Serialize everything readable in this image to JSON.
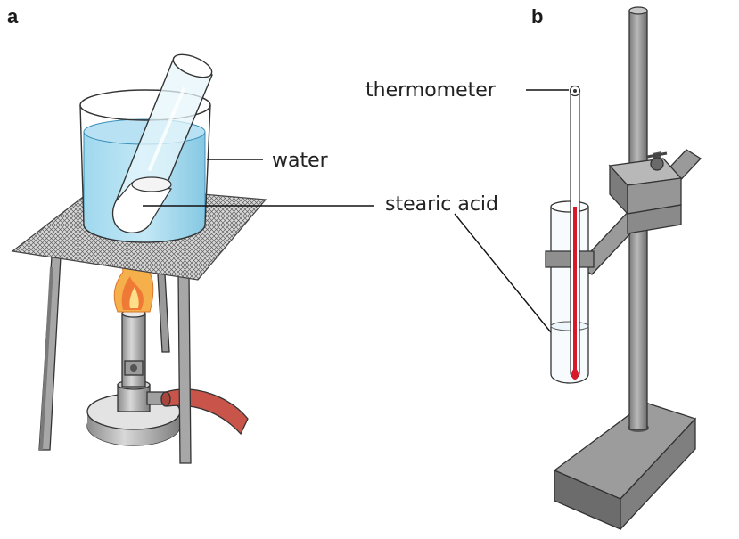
{
  "panels": {
    "a": {
      "letter": "a"
    },
    "b": {
      "letter": "b"
    }
  },
  "labels": {
    "water": "water",
    "stearic_acid": "stearic acid",
    "thermometer": "thermometer"
  },
  "colors": {
    "water_fill": "#8fd0ea",
    "water_edge": "#3a8fb8",
    "flame_outer": "#f4a340",
    "flame_inner": "#e8612c",
    "rubber_tube": "#c9554a",
    "metal_light": "#d2d2d2",
    "metal_mid": "#a8a8a8",
    "metal_dark": "#6e6e6e",
    "mercury": "#d7182a",
    "line": "#111111"
  }
}
